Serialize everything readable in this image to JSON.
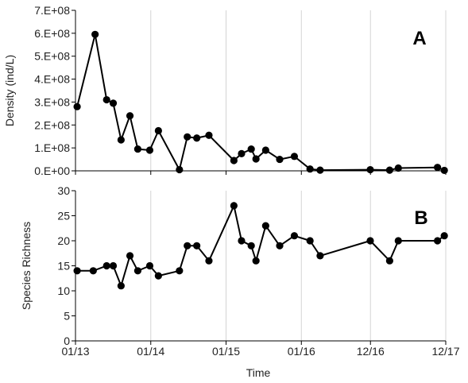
{
  "chart_data": [
    {
      "type": "line",
      "panel_label": "A",
      "ylabel": "Density (ind/L)",
      "xlabel": "",
      "ylim": [
        0,
        700000000
      ],
      "yticks": [
        0,
        100000000,
        200000000,
        300000000,
        400000000,
        500000000,
        600000000,
        700000000
      ],
      "ytick_labels": [
        "0.E+00",
        "1.E+08",
        "2.E+08",
        "3.E+08",
        "4.E+08",
        "5.E+08",
        "6.E+08",
        "7.E+08"
      ],
      "xlim": [
        "2013-01-01",
        "2017-12-01"
      ],
      "xticks": [
        "2013-01-01",
        "2014-01-01",
        "2015-01-01",
        "2016-01-01",
        "2016-12-01",
        "2017-12-01"
      ],
      "xtick_labels": [],
      "grid": "vertical",
      "color": "#000000",
      "series": [
        {
          "x": [
            "2013-01-09",
            "2013-04-06",
            "2013-06-01",
            "2013-07-03",
            "2013-08-10",
            "2013-09-22",
            "2013-10-30",
            "2013-12-27",
            "2014-02-07",
            "2014-05-20",
            "2014-06-27",
            "2014-08-12",
            "2014-10-10",
            "2015-02-08",
            "2015-03-17",
            "2015-05-03",
            "2015-05-26",
            "2015-07-12",
            "2015-09-18",
            "2015-11-28",
            "2016-02-12",
            "2016-04-01",
            "2016-11-30",
            "2017-03-04",
            "2017-04-15",
            "2017-10-22",
            "2017-11-24"
          ],
          "values": [
            280000000,
            595000000,
            310000000,
            295000000,
            135000000,
            240000000,
            95000000,
            90000000,
            175000000,
            5000000,
            148000000,
            143000000,
            155000000,
            45000000,
            75000000,
            95000000,
            52000000,
            90000000,
            50000000,
            63000000,
            8000000,
            3000000,
            5000000,
            3000000,
            12000000,
            15000000,
            2000000
          ]
        }
      ]
    },
    {
      "type": "line",
      "panel_label": "B",
      "ylabel": "Species Richness",
      "xlabel": "Time",
      "ylim": [
        0,
        30
      ],
      "yticks": [
        0,
        5,
        10,
        15,
        20,
        25,
        30
      ],
      "ytick_labels": [
        "0",
        "5",
        "10",
        "15",
        "20",
        "25",
        "30"
      ],
      "xlim": [
        "2013-01-01",
        "2017-12-01"
      ],
      "xticks": [
        "2013-01-01",
        "2014-01-01",
        "2015-01-01",
        "2016-01-01",
        "2016-12-01",
        "2017-12-01"
      ],
      "xtick_labels": [
        "01/13",
        "01/14",
        "01/15",
        "01/16",
        "12/16",
        "12/17"
      ],
      "grid": "vertical",
      "color": "#000000",
      "series": [
        {
          "x": [
            "2013-01-09",
            "2013-03-28",
            "2013-06-01",
            "2013-07-03",
            "2013-08-10",
            "2013-09-22",
            "2013-10-30",
            "2013-12-27",
            "2014-02-07",
            "2014-05-20",
            "2014-06-27",
            "2014-08-12",
            "2014-10-10",
            "2015-02-08",
            "2015-03-17",
            "2015-05-03",
            "2015-05-26",
            "2015-07-12",
            "2015-09-18",
            "2015-11-28",
            "2016-02-12",
            "2016-04-01",
            "2016-11-30",
            "2017-03-04",
            "2017-04-15",
            "2017-10-22",
            "2017-11-24"
          ],
          "values": [
            14,
            14,
            15,
            15,
            11,
            17,
            14,
            15,
            13,
            14,
            19,
            19,
            16,
            27,
            20,
            19,
            16,
            23,
            19,
            21,
            20,
            17,
            20,
            16,
            20,
            20,
            21
          ]
        }
      ]
    }
  ]
}
